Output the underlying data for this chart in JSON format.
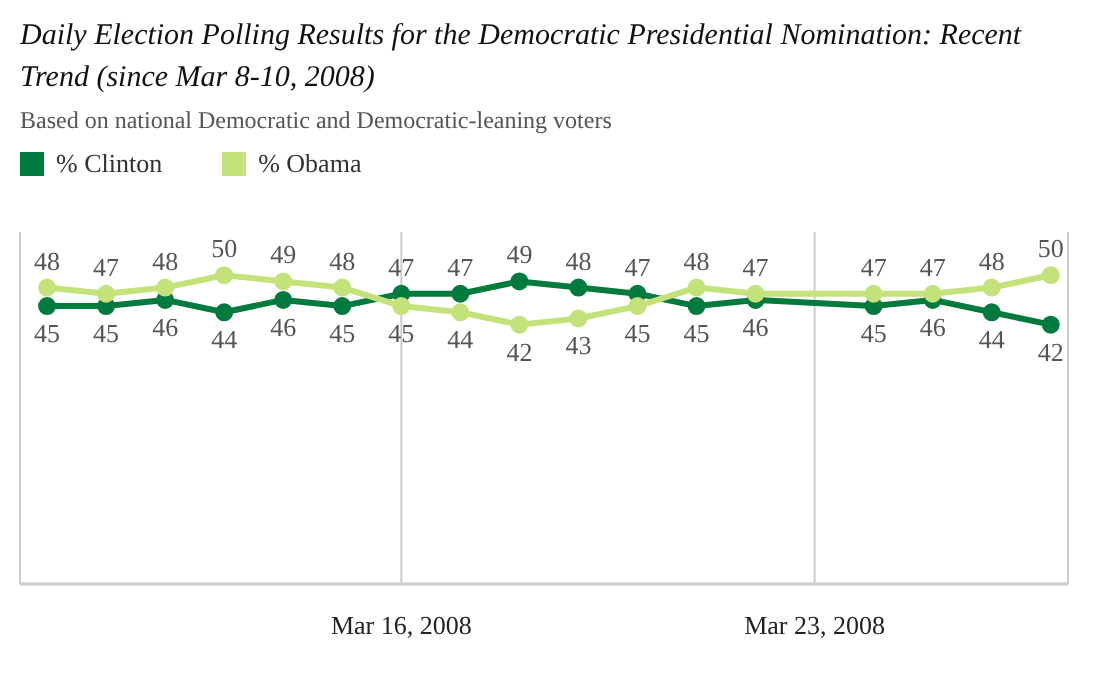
{
  "chart_data": {
    "type": "line",
    "title": "Daily Election Polling Results for the Democratic Presidential Nomination: Recent Trend (since Mar 8-10, 2008)",
    "subtitle": "Based on national Democratic and Democratic-leaning voters",
    "x": [
      "2008-03-10",
      "2008-03-11",
      "2008-03-12",
      "2008-03-13",
      "2008-03-14",
      "2008-03-15",
      "2008-03-16",
      "2008-03-17",
      "2008-03-18",
      "2008-03-19",
      "2008-03-20",
      "2008-03-21",
      "2008-03-22",
      "2008-03-24",
      "2008-03-25",
      "2008-03-26",
      "2008-03-27"
    ],
    "series": [
      {
        "name": "% Clinton",
        "color": "#007a3d",
        "values": [
          45,
          45,
          46,
          44,
          46,
          45,
          47,
          47,
          49,
          48,
          47,
          45,
          46,
          45,
          46,
          44,
          42
        ]
      },
      {
        "name": "% Obama",
        "color": "#c4e27a",
        "values": [
          48,
          47,
          48,
          50,
          49,
          48,
          45,
          44,
          42,
          43,
          45,
          48,
          47,
          47,
          47,
          48,
          50
        ]
      }
    ],
    "xlim": [
      "2008-03-09T13:00",
      "2008-03-27T07:00"
    ],
    "xticks": [
      {
        "value": "2008-03-16",
        "label": "Mar 16, 2008"
      },
      {
        "value": "2008-03-23",
        "label": "Mar 23, 2008"
      }
    ],
    "ylim": [
      0,
      57
    ],
    "tick_labels": "x",
    "grid": "x",
    "legend": "top left",
    "marker": "circle",
    "line_style": "solid",
    "data_labels": true
  }
}
